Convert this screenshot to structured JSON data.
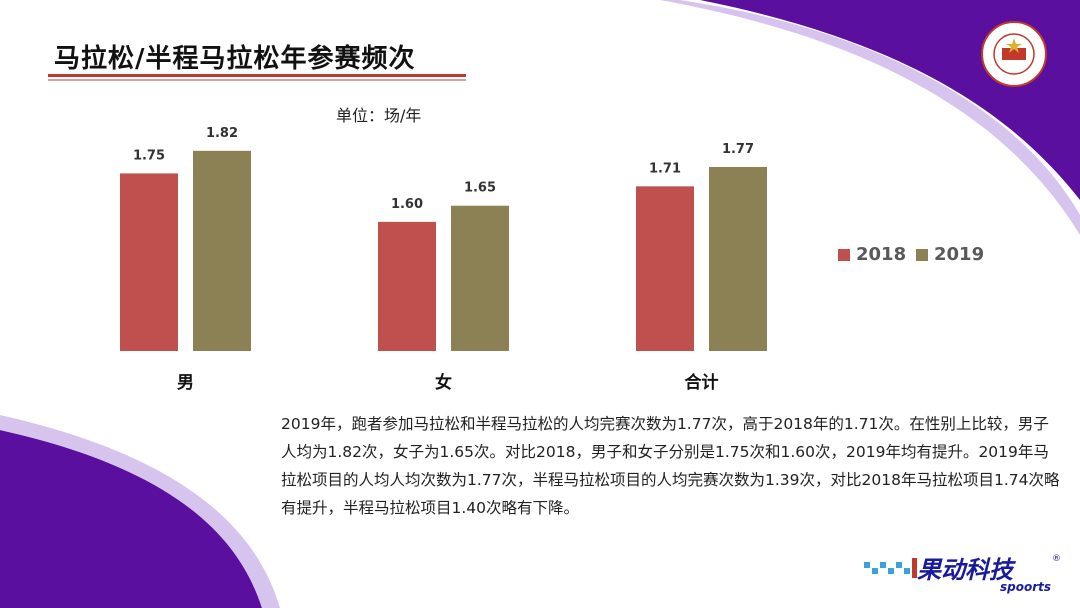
{
  "header": {
    "title": "马拉松/半程马拉松年参赛频次",
    "unit": "单位：场/年"
  },
  "chart_data": {
    "type": "bar",
    "categories": [
      "男",
      "女",
      "合计"
    ],
    "series": [
      {
        "name": "2018",
        "values": [
          1.75,
          1.6,
          1.71
        ],
        "labels": [
          "1.75",
          "1.60",
          "1.71"
        ],
        "color": "#c0504d"
      },
      {
        "name": "2019",
        "values": [
          1.82,
          1.65,
          1.77
        ],
        "labels": [
          "1.82",
          "1.65",
          "1.77"
        ],
        "color": "#8b8155"
      }
    ],
    "ylim": [
      1.2,
      1.9
    ],
    "legend_position": "right",
    "grid": false
  },
  "summary": {
    "text": "2019年，跑者参加马拉松和半程马拉松的人均完赛次数为1.77次，高于2018年的1.71次。在性别上比较，男子人均为1.82次，女子为1.65次。对比2018，男子和女子分别是1.75次和1.60次，2019年均有提升。2019年马拉松项目的人均人均次数为1.77次，半程马拉松项目的人均完赛次数为1.39次，对比2018年马拉松项目1.74次略有提升，半程马拉松项目1.40次略有下降。"
  },
  "brand": {
    "name_cn": "果动科技",
    "name_en": "spoorts",
    "registered": "®"
  },
  "colors": {
    "purple": "#5b0f9e",
    "accent_red": "#c0392b"
  },
  "icons": [
    "chinese-athletics-association-logo",
    "brand-logo"
  ]
}
